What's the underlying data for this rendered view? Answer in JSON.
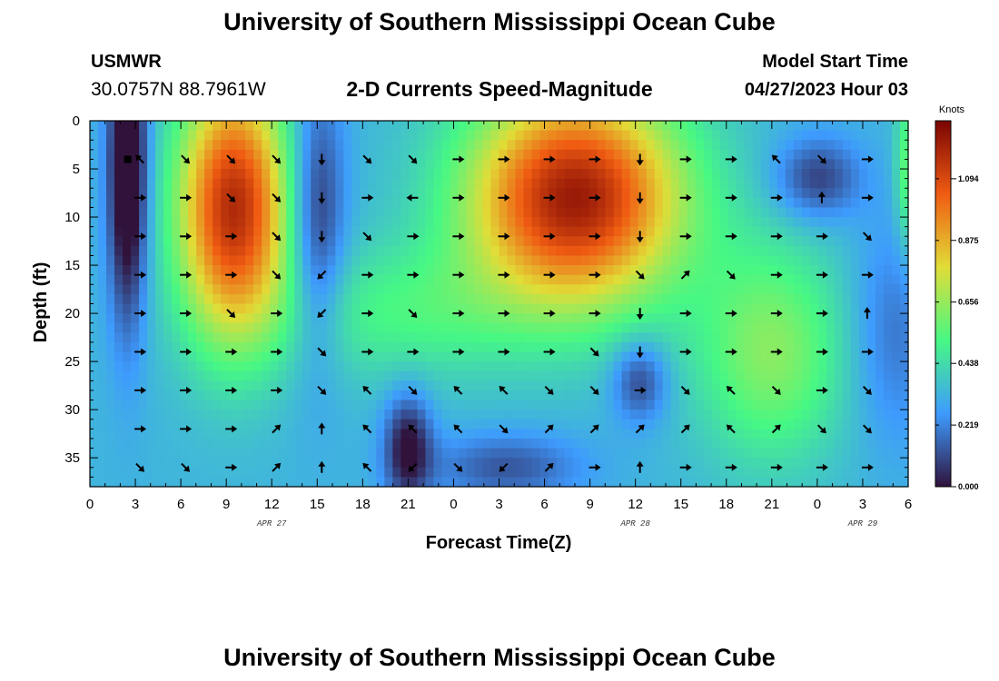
{
  "header": {
    "title": "University of Southern Mississippi Ocean Cube",
    "station": "USMWR",
    "coords": "30.0757N  88.7961W",
    "subtitle": "2-D Currents Speed-Magnitude",
    "start_label": "Model Start Time",
    "start_value": "04/27/2023 Hour 03"
  },
  "footer": {
    "title": "University of Southern Mississippi Ocean Cube"
  },
  "chart_data": {
    "type": "heatmap",
    "title": "2-D Currents Speed-Magnitude",
    "xlabel": "Forecast Time(Z)",
    "ylabel": "Depth (ft)",
    "x_unit": "forecast hour from 04/27/2023 00Z",
    "xlim": [
      0,
      54
    ],
    "ylim": [
      0,
      38
    ],
    "y_inverted": true,
    "x_ticks": [
      0,
      3,
      6,
      9,
      12,
      15,
      18,
      21,
      24,
      27,
      30,
      33,
      36,
      39,
      42,
      45,
      48,
      51,
      54
    ],
    "x_tick_labels": [
      "0",
      "3",
      "6",
      "9",
      "12",
      "15",
      "18",
      "21",
      "0",
      "3",
      "6",
      "9",
      "12",
      "15",
      "18",
      "21",
      "0",
      "3",
      "6"
    ],
    "y_ticks": [
      0,
      5,
      10,
      15,
      20,
      25,
      30,
      35
    ],
    "y_tick_labels": [
      "0",
      "5",
      "10",
      "15",
      "20",
      "25",
      "30",
      "35"
    ],
    "date_labels": [
      {
        "x": 12,
        "label": "APR 27"
      },
      {
        "x": 36,
        "label": "APR 28"
      },
      {
        "x": 51,
        "label": "APR 29"
      }
    ],
    "colorbar": {
      "unit": "Knots",
      "min": 0.0,
      "max": 1.3,
      "ticks": [
        0.0,
        0.219,
        0.438,
        0.656,
        0.875,
        1.094
      ],
      "tick_labels": [
        "0.000",
        "0.219",
        "0.438",
        "0.656",
        "0.875",
        "1.094"
      ],
      "colors": [
        "#30123b",
        "#3e9bfe",
        "#46f884",
        "#e1dd37",
        "#f05b12",
        "#7a0403"
      ]
    },
    "grid": false,
    "speed_features": [
      {
        "note": "low",
        "x": 2.5,
        "y": 5,
        "sx": 0.9,
        "sy": 11,
        "amp": -0.5
      },
      {
        "note": "high",
        "x": 9.5,
        "y": 9,
        "sx": 2.6,
        "sy": 9.5,
        "amp": 0.85
      },
      {
        "note": "low",
        "x": 15,
        "y": 10,
        "sx": 1.3,
        "sy": 10,
        "amp": -0.3
      },
      {
        "note": "high",
        "x": 32,
        "y": 8,
        "sx": 5,
        "sy": 8,
        "amp": 0.9
      },
      {
        "note": "high",
        "x": 20.5,
        "y": 20,
        "sx": 6,
        "sy": 5,
        "amp": 0.18
      },
      {
        "note": "low",
        "x": 21,
        "y": 34,
        "sx": 1.1,
        "sy": 4,
        "amp": -0.35
      },
      {
        "note": "low",
        "x": 36.3,
        "y": 27,
        "sx": 1.3,
        "sy": 3,
        "amp": -0.25
      },
      {
        "note": "low",
        "x": 27.5,
        "y": 36,
        "sx": 3.5,
        "sy": 2.5,
        "amp": -0.2
      },
      {
        "note": "high",
        "x": 45,
        "y": 24,
        "sx": 3.5,
        "sy": 8,
        "amp": 0.3
      },
      {
        "note": "low",
        "x": 48,
        "y": 6,
        "sx": 2,
        "sy": 3,
        "amp": -0.25
      },
      {
        "note": "low",
        "x": 53,
        "y": 22,
        "sx": 2,
        "sy": 8,
        "amp": -0.15
      },
      {
        "note": "high",
        "x": 54,
        "y": 5,
        "sx": 0.6,
        "sy": 6,
        "amp": 0.25
      }
    ],
    "vector_rows_depth": [
      4,
      8,
      12,
      16,
      20,
      24,
      28,
      32,
      36
    ],
    "vector_cols_hour": [
      3,
      6,
      9,
      12,
      15,
      18,
      21,
      24,
      27,
      30,
      33,
      36,
      39,
      42,
      45,
      48,
      51
    ],
    "vector_directions_deg": [
      [
        315,
        135,
        135,
        135,
        180,
        135,
        135,
        90,
        90,
        90,
        90,
        180,
        90,
        90,
        315,
        135,
        90
      ],
      [
        90,
        90,
        135,
        135,
        180,
        90,
        270,
        90,
        90,
        90,
        90,
        180,
        90,
        90,
        90,
        0,
        90
      ],
      [
        90,
        90,
        90,
        135,
        180,
        135,
        90,
        90,
        90,
        90,
        90,
        180,
        90,
        90,
        90,
        90,
        135
      ],
      [
        90,
        90,
        90,
        135,
        225,
        90,
        90,
        90,
        90,
        90,
        90,
        135,
        45,
        135,
        90,
        90,
        90
      ],
      [
        90,
        90,
        135,
        90,
        225,
        90,
        135,
        90,
        90,
        90,
        90,
        180,
        90,
        90,
        90,
        90,
        0
      ],
      [
        90,
        90,
        90,
        90,
        135,
        90,
        90,
        90,
        90,
        90,
        135,
        180,
        90,
        90,
        90,
        90,
        90
      ],
      [
        90,
        90,
        90,
        90,
        135,
        315,
        135,
        315,
        315,
        135,
        135,
        90,
        135,
        315,
        135,
        90,
        135
      ],
      [
        90,
        90,
        90,
        45,
        0,
        315,
        315,
        315,
        135,
        45,
        45,
        45,
        45,
        315,
        45,
        135,
        135
      ],
      [
        135,
        135,
        90,
        45,
        0,
        315,
        225,
        135,
        225,
        45,
        90,
        0,
        90,
        90,
        90,
        90,
        90
      ]
    ]
  }
}
